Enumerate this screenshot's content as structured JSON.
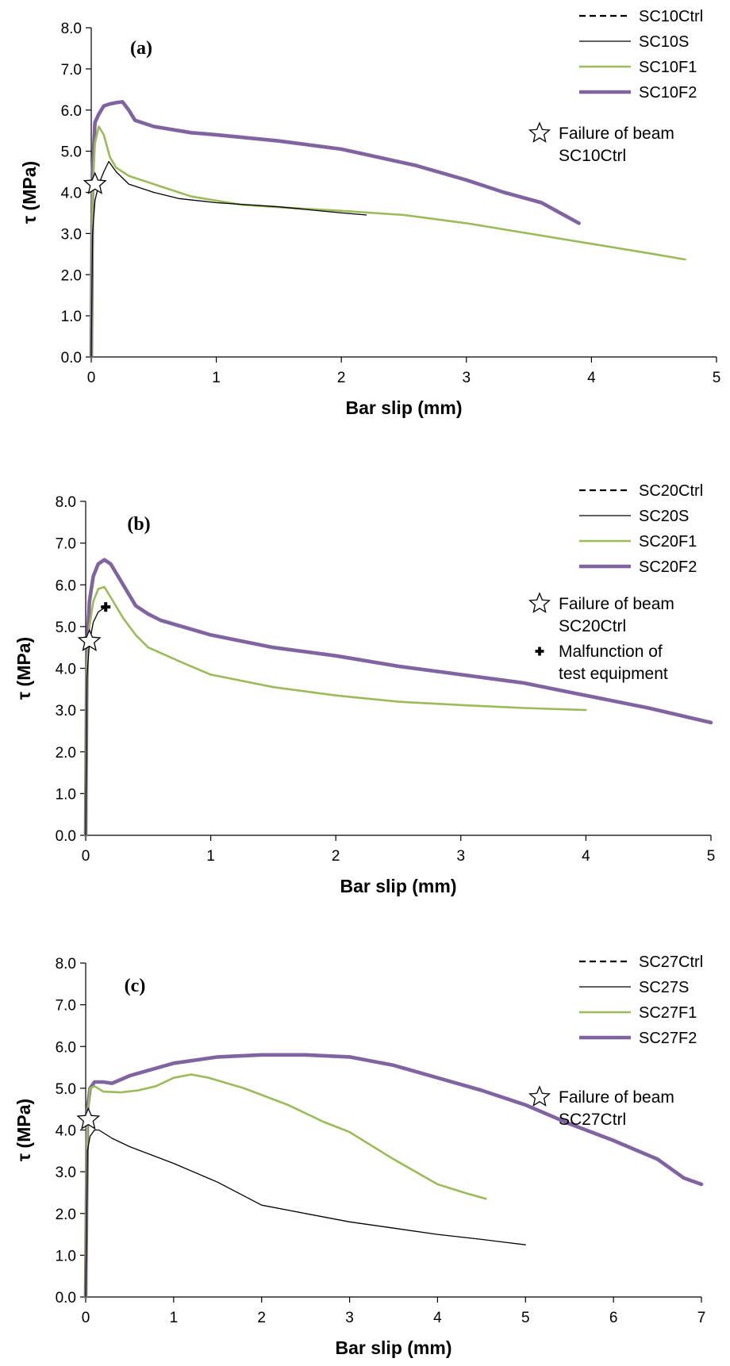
{
  "chart_data": [
    {
      "type": "line",
      "panel_label": "(a)",
      "xlabel": "Bar slip (mm)",
      "ylabel": "τ (MPa)",
      "xlim": [
        0,
        5
      ],
      "ylim": [
        0,
        8
      ],
      "x_ticks": [
        "0",
        "1",
        "2",
        "3",
        "4",
        "5"
      ],
      "y_ticks": [
        "0.0",
        "1.0",
        "2.0",
        "3.0",
        "4.0",
        "5.0",
        "6.0",
        "7.0",
        "8.0"
      ],
      "grid": false,
      "legend_position": "top-right",
      "series": [
        {
          "name": "SC10Ctrl",
          "style": "dashed",
          "color": "#000000",
          "points": []
        },
        {
          "name": "SC10S",
          "style": "thin",
          "color": "#000000",
          "points": [
            [
              0.0,
              0.0
            ],
            [
              0.01,
              3.0
            ],
            [
              0.03,
              3.8
            ],
            [
              0.06,
              4.2
            ],
            [
              0.1,
              4.5
            ],
            [
              0.14,
              4.75
            ],
            [
              0.2,
              4.5
            ],
            [
              0.3,
              4.2
            ],
            [
              0.5,
              4.0
            ],
            [
              0.7,
              3.85
            ],
            [
              1.0,
              3.75
            ],
            [
              1.5,
              3.65
            ],
            [
              2.0,
              3.5
            ],
            [
              2.2,
              3.45
            ]
          ]
        },
        {
          "name": "SC10F1",
          "style": "medium",
          "color": "#9bbb59",
          "points": [
            [
              0.0,
              0.0
            ],
            [
              0.01,
              4.0
            ],
            [
              0.03,
              5.2
            ],
            [
              0.06,
              5.6
            ],
            [
              0.1,
              5.4
            ],
            [
              0.15,
              4.85
            ],
            [
              0.2,
              4.6
            ],
            [
              0.3,
              4.4
            ],
            [
              0.5,
              4.2
            ],
            [
              0.8,
              3.9
            ],
            [
              1.2,
              3.7
            ],
            [
              1.6,
              3.62
            ],
            [
              2.0,
              3.55
            ],
            [
              2.5,
              3.45
            ],
            [
              3.0,
              3.25
            ],
            [
              3.5,
              3.0
            ],
            [
              4.0,
              2.75
            ],
            [
              4.5,
              2.5
            ],
            [
              4.75,
              2.37
            ]
          ]
        },
        {
          "name": "SC10F2",
          "style": "thick",
          "color": "#8064a2",
          "points": [
            [
              0.0,
              0.0
            ],
            [
              0.01,
              4.5
            ],
            [
              0.03,
              5.7
            ],
            [
              0.06,
              5.9
            ],
            [
              0.1,
              6.1
            ],
            [
              0.15,
              6.15
            ],
            [
              0.2,
              6.18
            ],
            [
              0.25,
              6.2
            ],
            [
              0.3,
              6.0
            ],
            [
              0.35,
              5.75
            ],
            [
              0.5,
              5.6
            ],
            [
              0.8,
              5.45
            ],
            [
              1.0,
              5.4
            ],
            [
              1.5,
              5.25
            ],
            [
              2.0,
              5.05
            ],
            [
              2.3,
              4.85
            ],
            [
              2.6,
              4.65
            ],
            [
              3.0,
              4.3
            ],
            [
              3.3,
              4.0
            ],
            [
              3.6,
              3.75
            ],
            [
              3.9,
              3.25
            ]
          ]
        }
      ],
      "annotations": [
        {
          "marker": "star",
          "x": 0.03,
          "y": 4.2,
          "text_lines": [
            "Failure of beam",
            "SC10Ctrl"
          ]
        }
      ]
    },
    {
      "type": "line",
      "panel_label": "(b)",
      "xlabel": "Bar slip (mm)",
      "ylabel": "τ (MPa)",
      "xlim": [
        0,
        5
      ],
      "ylim": [
        0,
        8
      ],
      "x_ticks": [
        "0",
        "1",
        "2",
        "3",
        "4",
        "5"
      ],
      "y_ticks": [
        "0.0",
        "1.0",
        "2.0",
        "3.0",
        "4.0",
        "5.0",
        "6.0",
        "7.0",
        "8.0"
      ],
      "grid": false,
      "legend_position": "top-right",
      "series": [
        {
          "name": "SC20Ctrl",
          "style": "dashed",
          "color": "#000000",
          "points": []
        },
        {
          "name": "SC20S",
          "style": "thin",
          "color": "#000000",
          "points": [
            [
              0.0,
              0.0
            ],
            [
              0.01,
              3.8
            ],
            [
              0.03,
              4.6
            ],
            [
              0.06,
              5.1
            ],
            [
              0.1,
              5.35
            ],
            [
              0.15,
              5.45
            ]
          ]
        },
        {
          "name": "SC20F1",
          "style": "medium",
          "color": "#9bbb59",
          "points": [
            [
              0.0,
              0.0
            ],
            [
              0.01,
              4.0
            ],
            [
              0.03,
              5.0
            ],
            [
              0.06,
              5.6
            ],
            [
              0.1,
              5.9
            ],
            [
              0.15,
              5.95
            ],
            [
              0.2,
              5.7
            ],
            [
              0.3,
              5.2
            ],
            [
              0.4,
              4.8
            ],
            [
              0.5,
              4.5
            ],
            [
              0.8,
              4.1
            ],
            [
              1.0,
              3.85
            ],
            [
              1.5,
              3.55
            ],
            [
              2.0,
              3.35
            ],
            [
              2.5,
              3.2
            ],
            [
              3.0,
              3.12
            ],
            [
              3.5,
              3.05
            ],
            [
              4.0,
              3.0
            ]
          ]
        },
        {
          "name": "SC20F2",
          "style": "thick",
          "color": "#8064a2",
          "points": [
            [
              0.0,
              0.0
            ],
            [
              0.01,
              4.5
            ],
            [
              0.03,
              5.6
            ],
            [
              0.06,
              6.2
            ],
            [
              0.1,
              6.5
            ],
            [
              0.15,
              6.6
            ],
            [
              0.2,
              6.5
            ],
            [
              0.3,
              6.0
            ],
            [
              0.4,
              5.5
            ],
            [
              0.5,
              5.3
            ],
            [
              0.6,
              5.15
            ],
            [
              1.0,
              4.8
            ],
            [
              1.5,
              4.5
            ],
            [
              2.0,
              4.3
            ],
            [
              2.5,
              4.05
            ],
            [
              3.0,
              3.85
            ],
            [
              3.5,
              3.65
            ],
            [
              4.0,
              3.35
            ],
            [
              4.5,
              3.05
            ],
            [
              5.0,
              2.7
            ]
          ]
        }
      ],
      "annotations": [
        {
          "marker": "star",
          "x": 0.03,
          "y": 4.65,
          "text_lines": [
            "Failure of beam",
            "SC20Ctrl"
          ]
        },
        {
          "marker": "plus",
          "x": 0.16,
          "y": 5.47,
          "text_lines": [
            "Malfunction of",
            "test equipment"
          ]
        }
      ]
    },
    {
      "type": "line",
      "panel_label": "(c)",
      "xlabel": "Bar slip (mm)",
      "ylabel": "τ (MPa)",
      "xlim": [
        0,
        7
      ],
      "ylim": [
        0,
        8
      ],
      "x_ticks": [
        "0",
        "1",
        "2",
        "3",
        "4",
        "5",
        "6",
        "7"
      ],
      "y_ticks": [
        "0.0",
        "1.0",
        "2.0",
        "3.0",
        "4.0",
        "5.0",
        "6.0",
        "7.0",
        "8.0"
      ],
      "grid": false,
      "legend_position": "top-right",
      "series": [
        {
          "name": "SC27Ctrl",
          "style": "dashed",
          "color": "#000000",
          "points": []
        },
        {
          "name": "SC27S",
          "style": "thin",
          "color": "#000000",
          "points": [
            [
              0.0,
              0.0
            ],
            [
              0.02,
              3.5
            ],
            [
              0.05,
              3.85
            ],
            [
              0.1,
              4.0
            ],
            [
              0.15,
              4.0
            ],
            [
              0.3,
              3.8
            ],
            [
              0.5,
              3.6
            ],
            [
              1.0,
              3.2
            ],
            [
              1.5,
              2.75
            ],
            [
              2.0,
              2.2
            ],
            [
              2.5,
              2.0
            ],
            [
              3.0,
              1.8
            ],
            [
              3.5,
              1.65
            ],
            [
              4.0,
              1.5
            ],
            [
              4.5,
              1.38
            ],
            [
              5.0,
              1.25
            ]
          ]
        },
        {
          "name": "SC27F1",
          "style": "medium",
          "color": "#9bbb59",
          "points": [
            [
              0.0,
              0.0
            ],
            [
              0.02,
              4.3
            ],
            [
              0.05,
              5.0
            ],
            [
              0.1,
              5.05
            ],
            [
              0.2,
              4.92
            ],
            [
              0.4,
              4.9
            ],
            [
              0.6,
              4.95
            ],
            [
              0.8,
              5.05
            ],
            [
              1.0,
              5.25
            ],
            [
              1.2,
              5.33
            ],
            [
              1.4,
              5.25
            ],
            [
              1.8,
              5.0
            ],
            [
              2.3,
              4.6
            ],
            [
              2.7,
              4.2
            ],
            [
              3.0,
              3.95
            ],
            [
              3.5,
              3.3
            ],
            [
              4.0,
              2.7
            ],
            [
              4.3,
              2.5
            ],
            [
              4.55,
              2.35
            ]
          ]
        },
        {
          "name": "SC27F2",
          "style": "thick",
          "color": "#8064a2",
          "points": [
            [
              0.0,
              0.0
            ],
            [
              0.02,
              4.5
            ],
            [
              0.05,
              5.0
            ],
            [
              0.1,
              5.15
            ],
            [
              0.2,
              5.15
            ],
            [
              0.3,
              5.12
            ],
            [
              0.5,
              5.3
            ],
            [
              1.0,
              5.6
            ],
            [
              1.5,
              5.75
            ],
            [
              2.0,
              5.8
            ],
            [
              2.5,
              5.8
            ],
            [
              3.0,
              5.75
            ],
            [
              3.5,
              5.55
            ],
            [
              4.0,
              5.25
            ],
            [
              4.5,
              4.95
            ],
            [
              5.0,
              4.6
            ],
            [
              5.5,
              4.15
            ],
            [
              6.0,
              3.75
            ],
            [
              6.5,
              3.3
            ],
            [
              6.8,
              2.85
            ],
            [
              7.0,
              2.7
            ]
          ]
        }
      ],
      "annotations": [
        {
          "marker": "star",
          "x": 0.03,
          "y": 4.25,
          "text_lines": [
            "Failure of beam",
            "SC27Ctrl"
          ]
        }
      ]
    }
  ]
}
